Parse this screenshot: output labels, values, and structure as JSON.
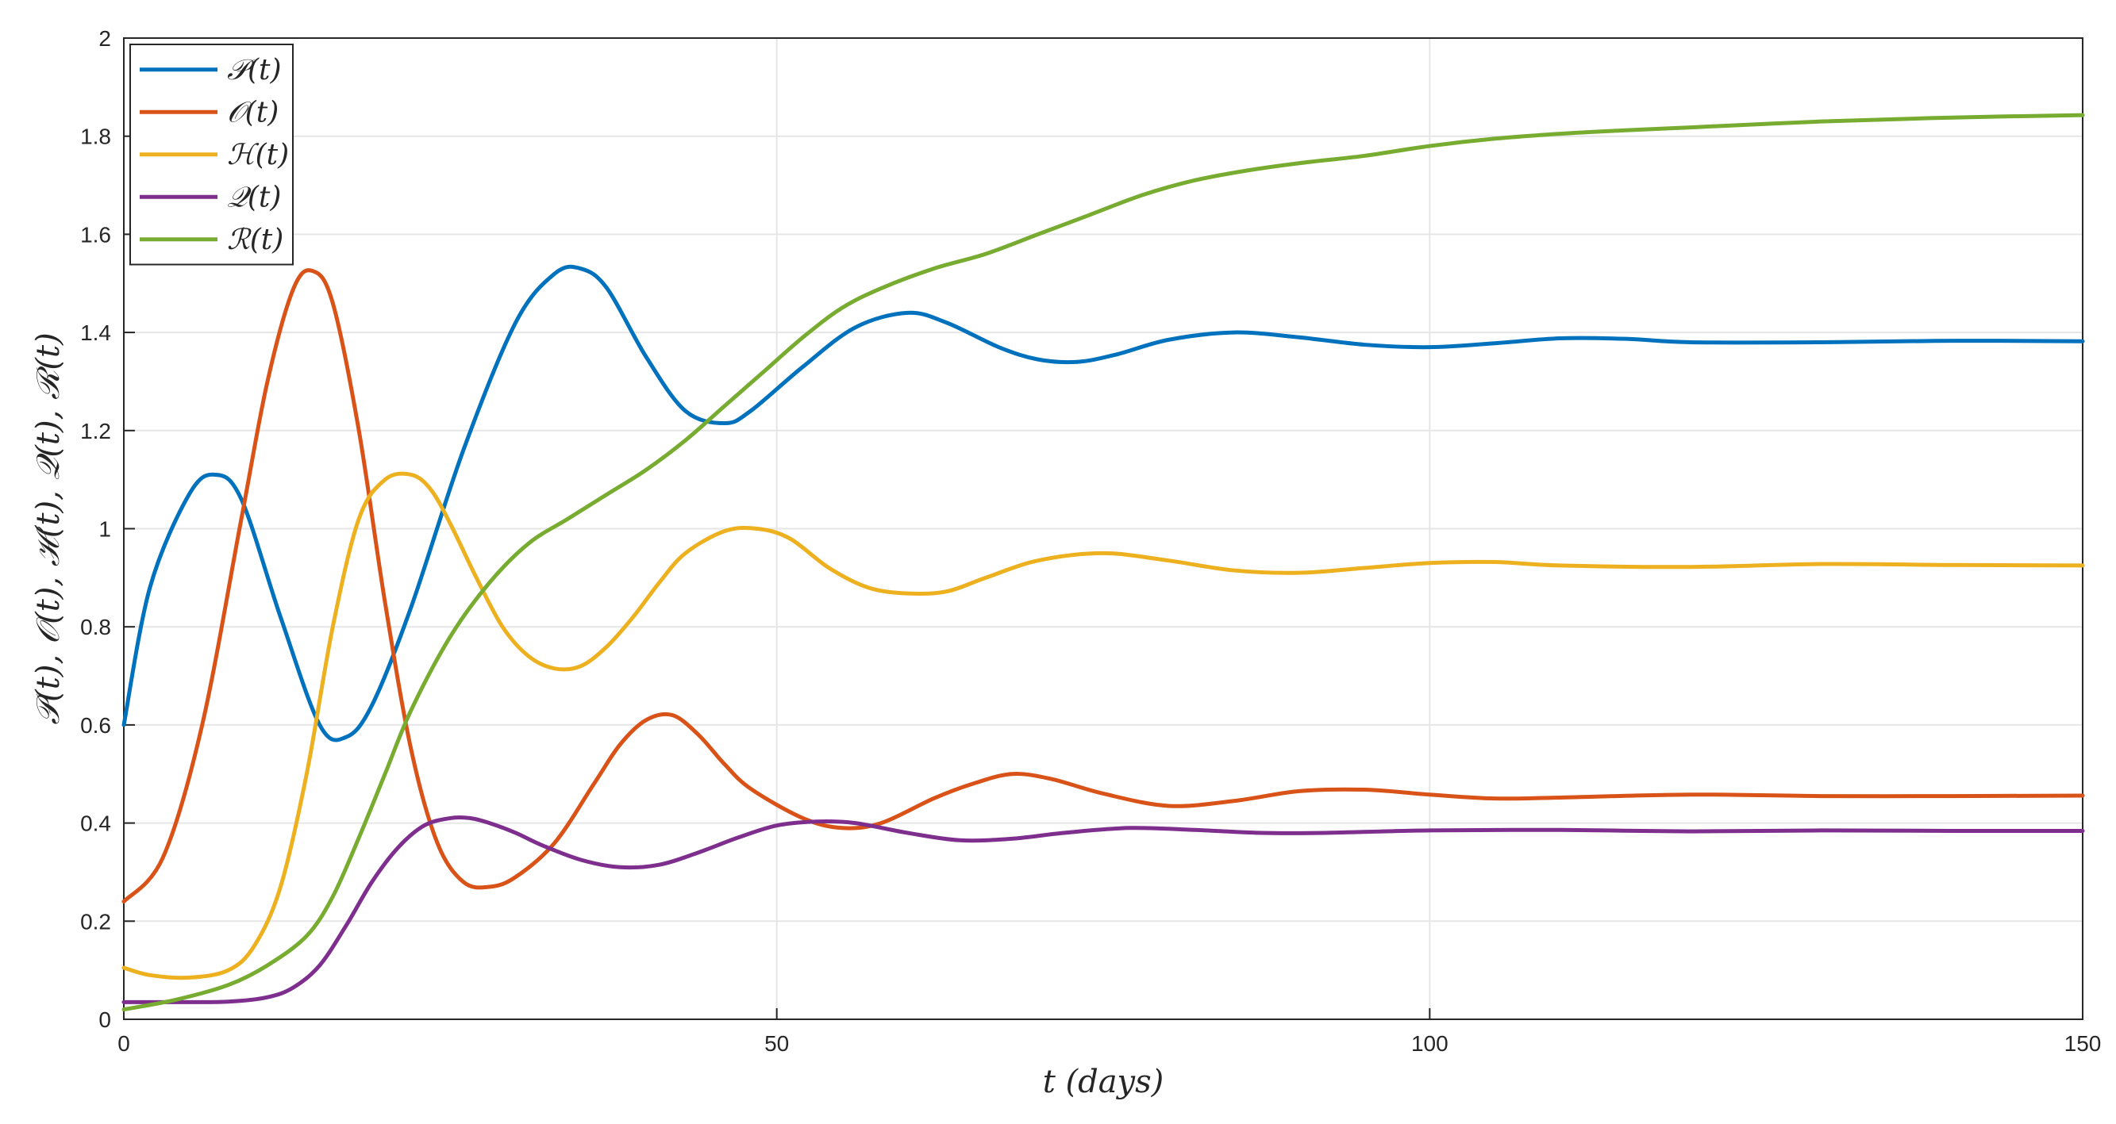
{
  "chart_data": {
    "type": "line",
    "xlabel": "t (days)",
    "ylabel": "𝒫(t), 𝒪(t), ℋ(t), 𝒬(t), ℛ(t)",
    "xlim": [
      0,
      150
    ],
    "ylim": [
      0,
      2
    ],
    "xticks": [
      0,
      50,
      100,
      150
    ],
    "yticks": [
      0,
      0.2,
      0.4,
      0.6,
      0.8,
      1,
      1.2,
      1.4,
      1.6,
      1.8,
      2
    ],
    "xtick_labels": [
      "0",
      "50",
      "100",
      "150"
    ],
    "ytick_labels": [
      "0",
      "0.2",
      "0.4",
      "0.6",
      "0.8",
      "1",
      "1.2",
      "1.4",
      "1.6",
      "1.8",
      "2"
    ],
    "grid": true,
    "legend_position": "top-left",
    "series": [
      {
        "name": "𝒫(t)",
        "color": "#0072BD",
        "x": [
          0,
          2,
          5,
          7,
          9,
          12,
          15,
          17,
          19,
          22,
          26,
          30,
          33,
          35,
          37,
          40,
          43,
          46,
          48,
          52,
          56,
          60,
          63,
          67,
          70,
          73,
          76,
          80,
          85,
          90,
          95,
          100,
          105,
          110,
          115,
          120,
          130,
          140,
          150
        ],
        "values": [
          0.6,
          0.88,
          1.07,
          1.11,
          1.06,
          0.82,
          0.6,
          0.575,
          0.64,
          0.84,
          1.16,
          1.42,
          1.52,
          1.53,
          1.49,
          1.35,
          1.24,
          1.215,
          1.24,
          1.33,
          1.41,
          1.44,
          1.42,
          1.37,
          1.345,
          1.34,
          1.355,
          1.385,
          1.4,
          1.39,
          1.375,
          1.37,
          1.378,
          1.388,
          1.387,
          1.38,
          1.38,
          1.383,
          1.382
        ]
      },
      {
        "name": "𝒪(t)",
        "color": "#D95319",
        "x": [
          0,
          3,
          6,
          9,
          11,
          13,
          14.5,
          16,
          18,
          20,
          22,
          24,
          26,
          28,
          30,
          33,
          36,
          38,
          40,
          42,
          44,
          46,
          48,
          52,
          55,
          58,
          62,
          65,
          68,
          71,
          75,
          80,
          85,
          90,
          95,
          100,
          105,
          110,
          120,
          130,
          140,
          150
        ],
        "values": [
          0.24,
          0.33,
          0.6,
          1.02,
          1.3,
          1.49,
          1.525,
          1.46,
          1.2,
          0.85,
          0.55,
          0.36,
          0.28,
          0.27,
          0.29,
          0.36,
          0.48,
          0.56,
          0.61,
          0.62,
          0.58,
          0.52,
          0.47,
          0.41,
          0.39,
          0.4,
          0.45,
          0.48,
          0.5,
          0.49,
          0.46,
          0.435,
          0.445,
          0.465,
          0.468,
          0.458,
          0.45,
          0.452,
          0.458,
          0.455,
          0.455,
          0.456
        ]
      },
      {
        "name": "ℋ(t)",
        "color": "#EDB120",
        "x": [
          0,
          2,
          5,
          8,
          10,
          12,
          14,
          16,
          18,
          20,
          22,
          23.5,
          25,
          27,
          29,
          31,
          33,
          35,
          37,
          39,
          41,
          43,
          46,
          48.5,
          51,
          54,
          57,
          60,
          63,
          66,
          70,
          75,
          80,
          85,
          90,
          95,
          100,
          105,
          110,
          120,
          130,
          140,
          150
        ],
        "values": [
          0.105,
          0.09,
          0.085,
          0.1,
          0.15,
          0.27,
          0.5,
          0.8,
          1.02,
          1.1,
          1.11,
          1.08,
          1.01,
          0.9,
          0.8,
          0.74,
          0.715,
          0.72,
          0.76,
          0.82,
          0.89,
          0.95,
          0.995,
          1.0,
          0.98,
          0.92,
          0.88,
          0.868,
          0.872,
          0.9,
          0.935,
          0.95,
          0.935,
          0.915,
          0.91,
          0.92,
          0.93,
          0.932,
          0.925,
          0.922,
          0.928,
          0.926,
          0.925
        ]
      },
      {
        "name": "𝒬(t)",
        "color": "#7E2F8E",
        "x": [
          0,
          4,
          8,
          11,
          13,
          15,
          17,
          19,
          21,
          23,
          25,
          26.5,
          28,
          30,
          32,
          35,
          38,
          41,
          44,
          47,
          50,
          53,
          56,
          60,
          64,
          68,
          72,
          77,
          82,
          87,
          92,
          100,
          110,
          120,
          130,
          140,
          150
        ],
        "values": [
          0.035,
          0.035,
          0.036,
          0.045,
          0.065,
          0.11,
          0.19,
          0.28,
          0.35,
          0.395,
          0.41,
          0.41,
          0.4,
          0.38,
          0.355,
          0.325,
          0.31,
          0.315,
          0.34,
          0.37,
          0.395,
          0.403,
          0.4,
          0.38,
          0.365,
          0.368,
          0.38,
          0.39,
          0.386,
          0.38,
          0.38,
          0.385,
          0.386,
          0.383,
          0.385,
          0.384,
          0.384
        ]
      },
      {
        "name": "ℛ(t)",
        "color": "#77AC30",
        "x": [
          0,
          4,
          8,
          11,
          14,
          16,
          18,
          20,
          22,
          25,
          28,
          31,
          34,
          37,
          40,
          43,
          46,
          49,
          52,
          55,
          58,
          62,
          66,
          70,
          74,
          78,
          82,
          86,
          90,
          95,
          100,
          105,
          110,
          115,
          120,
          130,
          140,
          150
        ],
        "values": [
          0.02,
          0.04,
          0.07,
          0.11,
          0.17,
          0.25,
          0.37,
          0.5,
          0.63,
          0.78,
          0.89,
          0.97,
          1.02,
          1.07,
          1.12,
          1.18,
          1.25,
          1.32,
          1.39,
          1.45,
          1.49,
          1.53,
          1.56,
          1.6,
          1.64,
          1.68,
          1.71,
          1.73,
          1.745,
          1.76,
          1.78,
          1.795,
          1.805,
          1.812,
          1.818,
          1.83,
          1.838,
          1.843
        ]
      }
    ]
  }
}
